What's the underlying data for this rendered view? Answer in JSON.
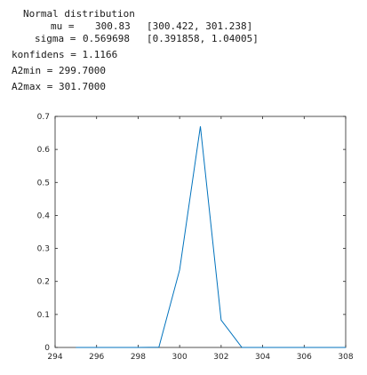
{
  "console": {
    "fit_title": "Normal distribution",
    "mu_label": "mu =",
    "mu_value": "300.83",
    "mu_ci": "[300.422, 301.238]",
    "sigma_label": "sigma =",
    "sigma_value": "0.569698",
    "sigma_ci": "[0.391858, 1.04005]",
    "konfidens_line": "konfidens = 1.1166",
    "a2min_line": "A2min = 299.7000",
    "a2max_line": "A2max = 301.7000"
  },
  "chart_data": {
    "type": "line",
    "title": "",
    "xlabel": "",
    "ylabel": "",
    "xlim": [
      294,
      308
    ],
    "ylim": [
      0,
      0.7
    ],
    "xticks": [
      294,
      296,
      298,
      300,
      302,
      304,
      306,
      308
    ],
    "yticks": [
      0,
      0.1,
      0.2,
      0.3,
      0.4,
      0.5,
      0.6,
      0.7
    ],
    "xtick_labels": [
      "294",
      "296",
      "298",
      "300",
      "302",
      "304",
      "306",
      "308"
    ],
    "ytick_labels": [
      "0",
      "0.1",
      "0.2",
      "0.3",
      "0.4",
      "0.5",
      "0.6",
      "0.7"
    ],
    "grid": false,
    "line_color": "#0072bd",
    "series": [
      {
        "x": [
          295,
          296,
          297,
          298,
          299,
          300,
          301,
          302,
          303,
          304,
          305,
          306,
          307,
          308
        ],
        "y": [
          0,
          0,
          0,
          0,
          0.0005,
          0.235,
          0.67,
          0.083,
          0,
          0,
          0,
          0,
          0,
          0
        ]
      }
    ]
  }
}
